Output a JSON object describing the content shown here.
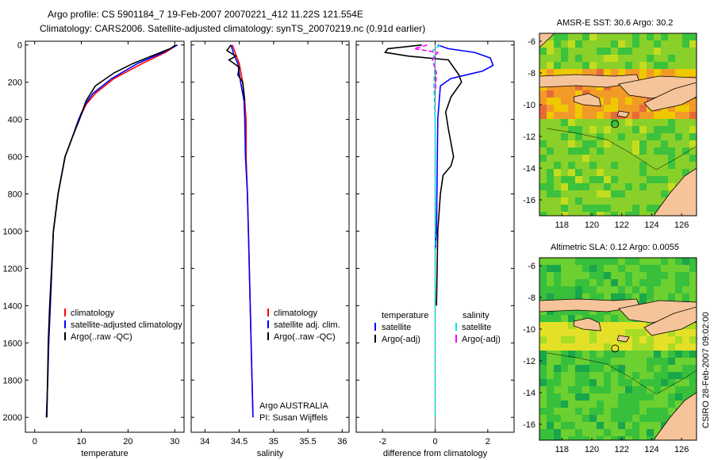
{
  "header": {
    "line1": "Argo profile: CS 5901184_7 19-Feb-2007 20070221_412 11.22S 121.554E",
    "line2": "Climatology: CARS2006. Satellite-adjusted climatology: synTS_20070219.nc (0.91d earlier)"
  },
  "colors": {
    "climatology": "#ff0000",
    "satellite": "#0000ff",
    "argo": "#000000",
    "salinity_satellite": "#00e5e5",
    "salinity_argo": "#ff00ff",
    "land": "#f6c49a"
  },
  "chart_data": [
    {
      "type": "line",
      "xlabel": "temperature",
      "ylabel": "",
      "xlim": [
        -2,
        32
      ],
      "ylim": [
        2080,
        -20
      ],
      "xticks": [
        "0",
        "10",
        "20",
        "30"
      ],
      "yticks": [
        "0",
        "200",
        "400",
        "600",
        "800",
        "1000",
        "1200",
        "1400",
        "1600",
        "1800",
        "2000"
      ],
      "legend": [
        "climatology",
        "satellite-adjusted climatology",
        "Argo(..raw -QC)"
      ],
      "series": [
        {
          "name": "climatology",
          "color": "#ff0000",
          "x": [
            30.5,
            28,
            23,
            17,
            13,
            11,
            9.5,
            8,
            6.5,
            5,
            4,
            3.5,
            3,
            2.8,
            2.5
          ],
          "y": [
            0,
            40,
            100,
            180,
            260,
            320,
            400,
            500,
            600,
            800,
            1000,
            1300,
            1600,
            1800,
            2000
          ]
        },
        {
          "name": "satellite-adjusted climatology",
          "color": "#0000ff",
          "x": [
            30.6,
            27.5,
            22,
            16.5,
            12.5,
            10.8,
            9.4,
            8,
            6.5,
            5,
            4,
            3.5,
            3,
            2.8,
            2.5
          ],
          "y": [
            0,
            40,
            100,
            180,
            260,
            320,
            400,
            500,
            600,
            800,
            1000,
            1300,
            1600,
            1800,
            2000
          ]
        },
        {
          "name": "Argo(..raw -QC)",
          "color": "#000000",
          "x": [
            30.2,
            29,
            25,
            21,
            17,
            13,
            11,
            9.6,
            8,
            6.5,
            5,
            4,
            3.2,
            2.9,
            2.6
          ],
          "y": [
            0,
            20,
            60,
            100,
            150,
            220,
            300,
            400,
            500,
            600,
            800,
            1000,
            1400,
            1600,
            2000
          ]
        }
      ]
    },
    {
      "type": "line",
      "xlabel": "salinity",
      "xlim": [
        33.8,
        36.1
      ],
      "ylim": [
        2080,
        -20
      ],
      "xticks": [
        "34",
        "34.5",
        "35",
        "35.5",
        "36"
      ],
      "legend": [
        "climatology",
        "satellite adj. clim.",
        "Argo(..raw -QC)"
      ],
      "annotation": [
        "Argo AUSTRALIA",
        "PI: Susan Wijffels"
      ],
      "series": [
        {
          "name": "climatology",
          "color": "#ff0000",
          "x": [
            34.4,
            34.45,
            34.5,
            34.55,
            34.58,
            34.6,
            34.6,
            34.62,
            34.64,
            34.66,
            34.68,
            34.7
          ],
          "y": [
            0,
            50,
            100,
            200,
            300,
            400,
            600,
            800,
            1100,
            1400,
            1700,
            2000
          ]
        },
        {
          "name": "satellite adj. clim.",
          "color": "#0000ff",
          "x": [
            34.38,
            34.42,
            34.48,
            34.52,
            34.57,
            34.58,
            34.59,
            34.62,
            34.64,
            34.66,
            34.68,
            34.7
          ],
          "y": [
            0,
            50,
            100,
            200,
            300,
            400,
            600,
            800,
            1100,
            1400,
            1700,
            2000
          ]
        },
        {
          "name": "Argo(..raw -QC)",
          "color": "#000000",
          "x": [
            34.38,
            34.32,
            34.45,
            34.35,
            34.5,
            34.48,
            34.55,
            34.58
          ],
          "y": [
            0,
            30,
            60,
            80,
            120,
            160,
            200,
            300
          ]
        }
      ]
    },
    {
      "type": "line",
      "xlabel": "difference from climatology",
      "xlim": [
        -3.0,
        3.0
      ],
      "ylim": [
        2080,
        -20
      ],
      "xticks": [
        "-2",
        "0",
        "2"
      ],
      "legend_temperature": [
        "temperature",
        "satellite",
        "Argo(-adj)"
      ],
      "legend_salinity": [
        "salinity",
        "satellite",
        "Argo(-adj)"
      ],
      "series": [
        {
          "name": "temperature satellite",
          "color": "#0000ff",
          "x": [
            0.1,
            0.5,
            1.5,
            2.1,
            2.2,
            1.8,
            1.2,
            0.6,
            0.2,
            0.1,
            0.05,
            0
          ],
          "y": [
            0,
            20,
            40,
            70,
            110,
            140,
            160,
            180,
            220,
            400,
            1000,
            1100
          ]
        },
        {
          "name": "temperature Argo(-adj)",
          "color": "#000000",
          "x": [
            -0.5,
            -1.8,
            -1.9,
            -1,
            0.5,
            0.9,
            1.0,
            0.6,
            0.4,
            0.5,
            0.7,
            0.6,
            0.3,
            0.2,
            0.1,
            0.05
          ],
          "y": [
            0,
            20,
            40,
            60,
            80,
            160,
            200,
            280,
            360,
            450,
            600,
            650,
            700,
            800,
            1000,
            1400
          ]
        },
        {
          "name": "salinity satellite",
          "color": "#00e5e5",
          "x": [
            0.2,
            -0.1,
            0,
            -0.05,
            0,
            0,
            0
          ],
          "y": [
            0,
            30,
            100,
            200,
            400,
            1000,
            2000
          ]
        },
        {
          "name": "salinity Argo(-adj)",
          "color": "#ff00ff",
          "x": [
            -0.3,
            -0.8,
            0.1,
            -0.1,
            0.05,
            0
          ],
          "y": [
            0,
            20,
            40,
            80,
            150,
            250
          ]
        }
      ]
    }
  ],
  "maps": [
    {
      "title": "AMSR-E SST: 30.6 Argo: 30.2",
      "xticks": [
        "118",
        "120",
        "122",
        "124",
        "126"
      ],
      "yticks": [
        "-6",
        "-8",
        "-10",
        "-12",
        "-14",
        "-16"
      ]
    },
    {
      "title": "Altimetric SLA: 0.12 Argo: 0.0055",
      "xticks": [
        "118",
        "120",
        "122",
        "124",
        "126"
      ],
      "yticks": [
        "-6",
        "-8",
        "-10",
        "-12",
        "-14",
        "-16"
      ]
    }
  ],
  "credit": "CSIRO 28-Feb-2007 09:02:00"
}
